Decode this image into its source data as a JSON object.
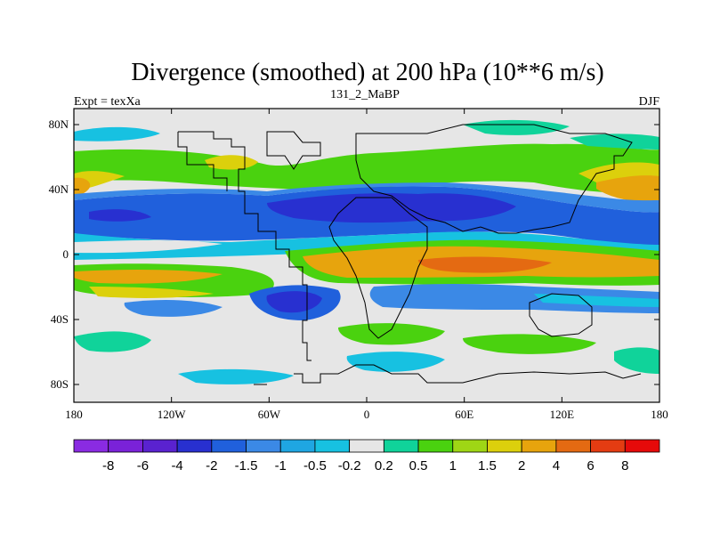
{
  "title": "Divergence (smoothed) at 200 hPa (10**6 m/s)",
  "left_label": "Expt = texXa",
  "center_label": "131_2_MaBP",
  "right_label": "DJF",
  "lat_ticks": [
    "80N",
    "40N",
    "0",
    "40S",
    "80S"
  ],
  "lon_ticks": [
    "180",
    "120W",
    "60W",
    "0",
    "60E",
    "120E",
    "180"
  ],
  "colorbar": {
    "colors": [
      "#8a2be2",
      "#7a22d8",
      "#5a22d0",
      "#2830d0",
      "#2060dc",
      "#3b89e6",
      "#1fa6e2",
      "#17c1e1",
      "#e6e6e6",
      "#10d39a",
      "#4ad20f",
      "#9fd615",
      "#dcd00c",
      "#e7a40d",
      "#e46a12",
      "#e43c12",
      "#e60a0a"
    ],
    "labels": [
      "-8",
      "-6",
      "-4",
      "-2",
      "-1.5",
      "-1",
      "-0.5",
      "-0.2",
      "0.2",
      "0.5",
      "1",
      "1.5",
      "2",
      "4",
      "6",
      "8"
    ]
  }
}
